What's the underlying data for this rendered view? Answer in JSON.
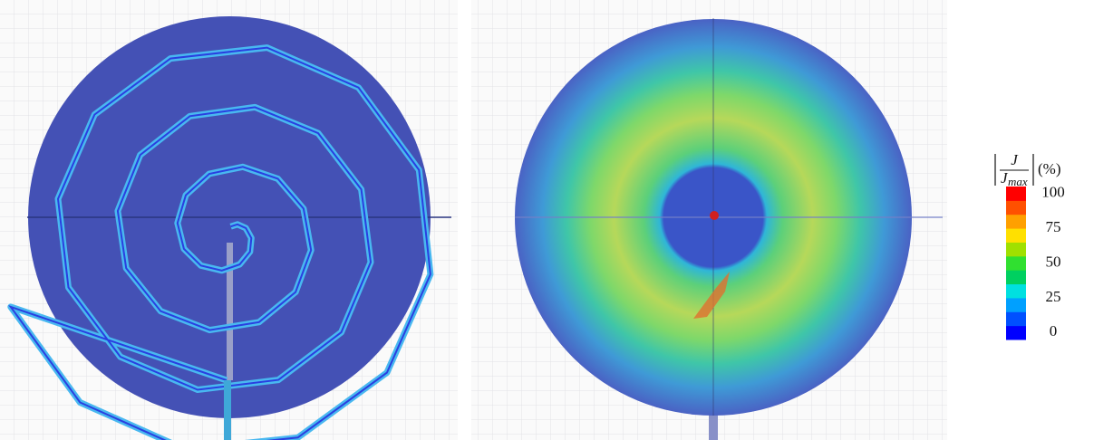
{
  "colorbar": {
    "numerator": "J",
    "denominator": "J",
    "subscript": "max",
    "unit": "(%)",
    "range": [
      0,
      100
    ],
    "ticks": [
      100,
      75,
      50,
      25,
      0
    ],
    "colors": [
      "#0000ff",
      "#0050ff",
      "#00a0ff",
      "#00e0e0",
      "#00d060",
      "#30e030",
      "#a0e000",
      "#ffe000",
      "#ffa000",
      "#ff5000",
      "#ff0000"
    ]
  }
}
